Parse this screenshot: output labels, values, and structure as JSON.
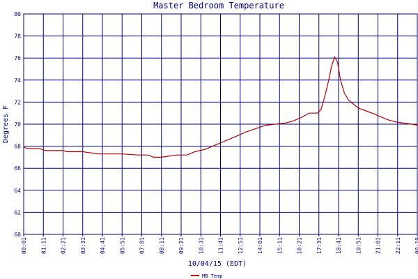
{
  "chart_data": {
    "type": "line",
    "title": "Master Bedroom Temperature",
    "xlabel": "10/04/15 (EDT)",
    "ylabel": "Degrees F",
    "ylim": [
      60,
      80
    ],
    "yticks": [
      60,
      62,
      64,
      66,
      68,
      70,
      72,
      74,
      76,
      78,
      80
    ],
    "grid": true,
    "legend_position": "bottom-left",
    "colors": {
      "axis": "#000080",
      "grid": "#000080",
      "series": "#b00000",
      "background": "#ffffff"
    },
    "x_tick_labels": [
      "00:01",
      "01:11",
      "02:21",
      "03:31",
      "04:41",
      "05:51",
      "07:01",
      "08:11",
      "09:21",
      "10:31",
      "11:41",
      "12:51",
      "14:01",
      "15:11",
      "16:21",
      "17:31",
      "18:41",
      "19:51",
      "21:01",
      "22:11",
      "00:19"
    ],
    "series": [
      {
        "name": "MB Temp",
        "x": [
          0.0,
          0.2,
          0.8,
          1.1,
          2.0,
          2.2,
          3.0,
          3.4,
          3.8,
          4.4,
          5.0,
          5.8,
          6.3,
          6.6,
          7.0,
          7.8,
          8.3,
          8.7,
          9.2,
          9.6,
          10.0,
          10.4,
          10.8,
          11.3,
          11.8,
          12.3,
          12.8,
          13.3,
          13.7,
          14.1,
          14.5,
          14.9,
          15.1,
          15.3,
          15.5,
          15.65,
          15.8,
          15.95,
          16.1,
          16.3,
          16.5,
          16.7,
          16.9,
          17.1,
          17.4,
          17.7,
          18.1,
          18.5,
          18.9,
          19.3,
          19.7,
          20.1,
          20.5,
          20.8,
          21.0
        ],
        "y": [
          67.9,
          67.8,
          67.8,
          67.6,
          67.6,
          67.5,
          67.5,
          67.4,
          67.3,
          67.3,
          67.3,
          67.2,
          67.2,
          67.0,
          67.0,
          67.2,
          67.2,
          67.5,
          67.7,
          68.0,
          68.3,
          68.6,
          68.9,
          69.3,
          69.6,
          69.9,
          70.0,
          70.1,
          70.3,
          70.6,
          71.0,
          71.0,
          71.3,
          72.5,
          74.0,
          75.3,
          76.1,
          75.6,
          74.0,
          72.8,
          72.2,
          71.9,
          71.6,
          71.4,
          71.2,
          71.0,
          70.7,
          70.4,
          70.2,
          70.1,
          70.0,
          69.9,
          69.8,
          69.8,
          69.7
        ]
      }
    ]
  }
}
